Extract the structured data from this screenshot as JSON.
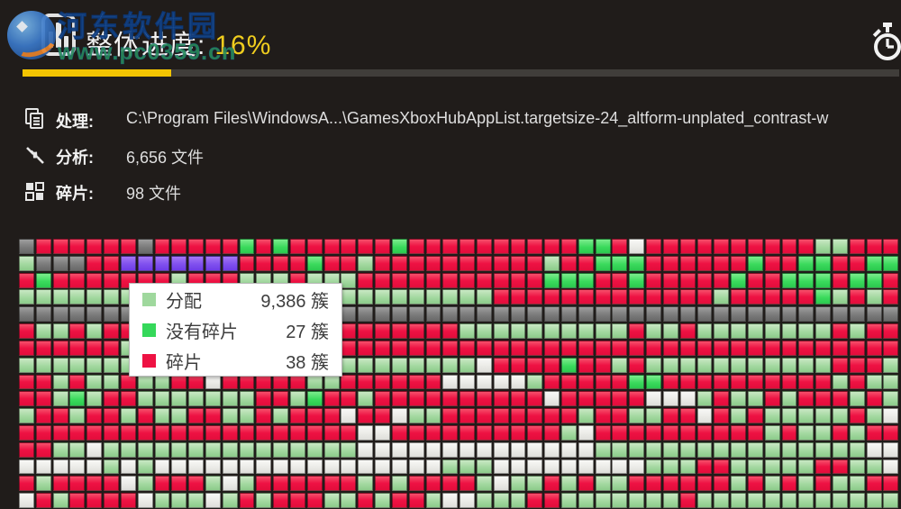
{
  "window": {
    "bg": "#201c1a"
  },
  "header": {
    "title_label": "整体进度:",
    "title_value": "16%",
    "progress_percent": 16,
    "progress_color": "#f3c402",
    "timer_icon": "stopwatch-icon"
  },
  "watermark": {
    "line1": "河东软件园",
    "line2": "www.pc0359.cn"
  },
  "info_rows": [
    {
      "icon": "copy-document-icon",
      "label": "处理:",
      "value": "C:\\Program Files\\WindowsA...\\GamesXboxHubAppList.targetsize-24_altform-unplated_contrast-w"
    },
    {
      "icon": "converging-arrows-icon",
      "label": "分析:",
      "value": "6,656 文件"
    },
    {
      "icon": "fragment-squares-icon",
      "label": "碎片:",
      "value": "98 文件"
    }
  ],
  "legend": {
    "rows": [
      {
        "swatch_color": "#9fd89d",
        "label": "分配",
        "value": "9,386 簇"
      },
      {
        "swatch_color": "#35d85a",
        "label": "没有碎片",
        "value": "27 簇"
      },
      {
        "swatch_color": "#ee1243",
        "label": "碎片",
        "value": "38 簇"
      }
    ]
  },
  "disk_map": {
    "palette": {
      "R": "#ee1243",
      "L": "#a3d8a0",
      "G": "#3bda5d",
      "D": "#7c7c7c",
      "W": "#ebebe7",
      "P": "#8050ee"
    },
    "rows": [
      "DRRRRRRDRRRRRGRGRRRRRRGRRRRRRRRRRGGRWRRRRRRRRRRLLRRR",
      "LDDDRRPPPPPPPRRRRGRRLRRRRRRRRRRLRRGGGRRRRRRGRRGGRRGG",
      "RGRRRRRRRLRRRLLLRLLLRRRRRRRRRRRGGGRRGRRRRRGRRGGGRGGR",
      "LLLLLLLLLLLLLLLLLLLLLLLLLLLLRRRRRRRRRRRRRLRRRRRGLRLR",
      "DDDDDDDDDDDDDDDDDDDDDDDDDDDDDDDDDDDDDDDDDDDDDDDDDDDD",
      "RLLRLRRRRRRRRRRRRRRRRRRRRRLLLLLLLLLLRLLRLLLLLLLLRLRR",
      "RRRRRRLRRRRRRRRRRRRRRRRRRRRRRRRRRRRRRRRRRRRRRRRRRRRR",
      "LLLLLLLLLLLLLLLLLRLLLLLLLLLWRRRRGRRLRLLLLLLLLLLLRRRL",
      "RRLRLLRLLRRWRRRRRLLRRRRRRWWWWWLRRRRRGGRRRRRRRRRRLRLL",
      "RRLGLRRLLLLLLLRRLGRRLRRRRRRRRRRWRRRRRWWWLRLLRLRRRLRL",
      "LRRLRRLRLLRRLLRLRRRWRRWLLRRRRRRRRLRRLLRRWRLRLLLLLRLW",
      "RRRRRRRRRRRRRRRRRRRRWWRRRRRRRRRRLWRRRRRRRRRRLRLLRLRR",
      "RRLLWLLLLLLLLLLLLLLLWWWWWWWWWWWWWWLLLLLLLLLLLLLLLLWW",
      "WWWWWLWLWWWWWWWWWWWWWWWWWLLLWWWWWWWWWLLLRRLLLLLRRLLW",
      "RLRRRRWLRRRLWLRRRRRRLRLRRRRLWLLRLRLLRRRRRRLRLRLRLLRR",
      "WRLRRRRWLLLWLRLRRRLLRLRRLWWLLLRRLLLLLLLRLLLLLLLLLLLL"
    ]
  }
}
